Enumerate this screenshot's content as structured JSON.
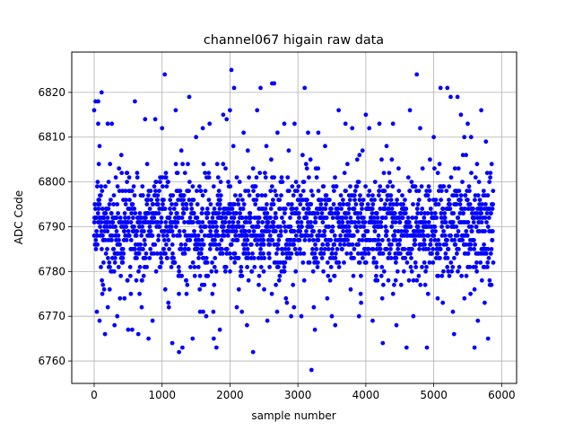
{
  "chart_data": {
    "type": "scatter",
    "title": "channel067 higain raw data",
    "xlabel": "sample number",
    "ylabel": "ADC Code",
    "xlim": [
      -330,
      6220
    ],
    "ylim": [
      6755,
      6829
    ],
    "xticks": [
      0,
      1000,
      2000,
      3000,
      4000,
      5000,
      6000
    ],
    "yticks": [
      6760,
      6770,
      6780,
      6790,
      6800,
      6810,
      6820
    ],
    "grid": true,
    "marker_color": "#0000ff",
    "series": [
      {
        "n_samples": 5880,
        "typical_range": [
          6775,
          6805
        ],
        "points": [
          [
            0,
            6816
          ],
          [
            20,
            6818
          ],
          [
            60,
            6818
          ],
          [
            110,
            6820
          ],
          [
            60,
            6813
          ],
          [
            80,
            6808
          ],
          [
            40,
            6771
          ],
          [
            80,
            6769
          ],
          [
            120,
            6775
          ],
          [
            160,
            6766
          ],
          [
            200,
            6813
          ],
          [
            260,
            6813
          ],
          [
            300,
            6768
          ],
          [
            340,
            6770
          ],
          [
            400,
            6806
          ],
          [
            500,
            6767
          ],
          [
            560,
            6767
          ],
          [
            600,
            6818
          ],
          [
            650,
            6766
          ],
          [
            700,
            6772
          ],
          [
            750,
            6814
          ],
          [
            800,
            6765
          ],
          [
            860,
            6769
          ],
          [
            900,
            6814
          ],
          [
            1000,
            6812
          ],
          [
            1040,
            6824
          ],
          [
            1100,
            6772
          ],
          [
            1150,
            6764
          ],
          [
            1200,
            6816
          ],
          [
            1250,
            6762
          ],
          [
            1300,
            6763
          ],
          [
            1360,
            6775
          ],
          [
            1400,
            6819
          ],
          [
            1450,
            6765
          ],
          [
            1500,
            6810
          ],
          [
            1560,
            6771
          ],
          [
            1600,
            6812
          ],
          [
            1650,
            6770
          ],
          [
            1700,
            6813
          ],
          [
            1760,
            6765
          ],
          [
            1800,
            6763
          ],
          [
            1850,
            6767
          ],
          [
            1900,
            6815
          ],
          [
            1950,
            6814
          ],
          [
            2000,
            6816
          ],
          [
            2020,
            6825
          ],
          [
            2060,
            6821
          ],
          [
            2100,
            6772
          ],
          [
            2200,
            6811
          ],
          [
            2250,
            6768
          ],
          [
            2340,
            6762
          ],
          [
            2400,
            6816
          ],
          [
            2450,
            6821
          ],
          [
            2550,
            6769
          ],
          [
            2620,
            6822
          ],
          [
            2650,
            6822
          ],
          [
            2700,
            6811
          ],
          [
            2800,
            6813
          ],
          [
            2900,
            6770
          ],
          [
            2950,
            6813
          ],
          [
            3050,
            6770
          ],
          [
            3100,
            6821
          ],
          [
            3150,
            6811
          ],
          [
            3200,
            6758
          ],
          [
            3250,
            6767
          ],
          [
            3300,
            6811
          ],
          [
            3400,
            6808
          ],
          [
            3500,
            6770
          ],
          [
            3550,
            6768
          ],
          [
            3600,
            6816
          ],
          [
            3700,
            6813
          ],
          [
            3800,
            6812
          ],
          [
            3900,
            6770
          ],
          [
            4000,
            6815
          ],
          [
            4050,
            6812
          ],
          [
            4100,
            6769
          ],
          [
            4200,
            6813
          ],
          [
            4250,
            6764
          ],
          [
            4400,
            6813
          ],
          [
            4450,
            6768
          ],
          [
            4600,
            6763
          ],
          [
            4650,
            6816
          ],
          [
            4700,
            6770
          ],
          [
            4750,
            6824
          ],
          [
            4800,
            6812
          ],
          [
            4900,
            6763
          ],
          [
            5000,
            6810
          ],
          [
            5100,
            6821
          ],
          [
            5200,
            6821
          ],
          [
            5250,
            6819
          ],
          [
            5300,
            6766
          ],
          [
            5350,
            6819
          ],
          [
            5400,
            6815
          ],
          [
            5450,
            6810
          ],
          [
            5500,
            6813
          ],
          [
            5550,
            6810
          ],
          [
            5600,
            6763
          ],
          [
            5650,
            6769
          ],
          [
            5700,
            6816
          ],
          [
            5750,
            6773
          ],
          [
            5800,
            6765
          ],
          [
            5850,
            6777
          ]
        ]
      }
    ]
  }
}
